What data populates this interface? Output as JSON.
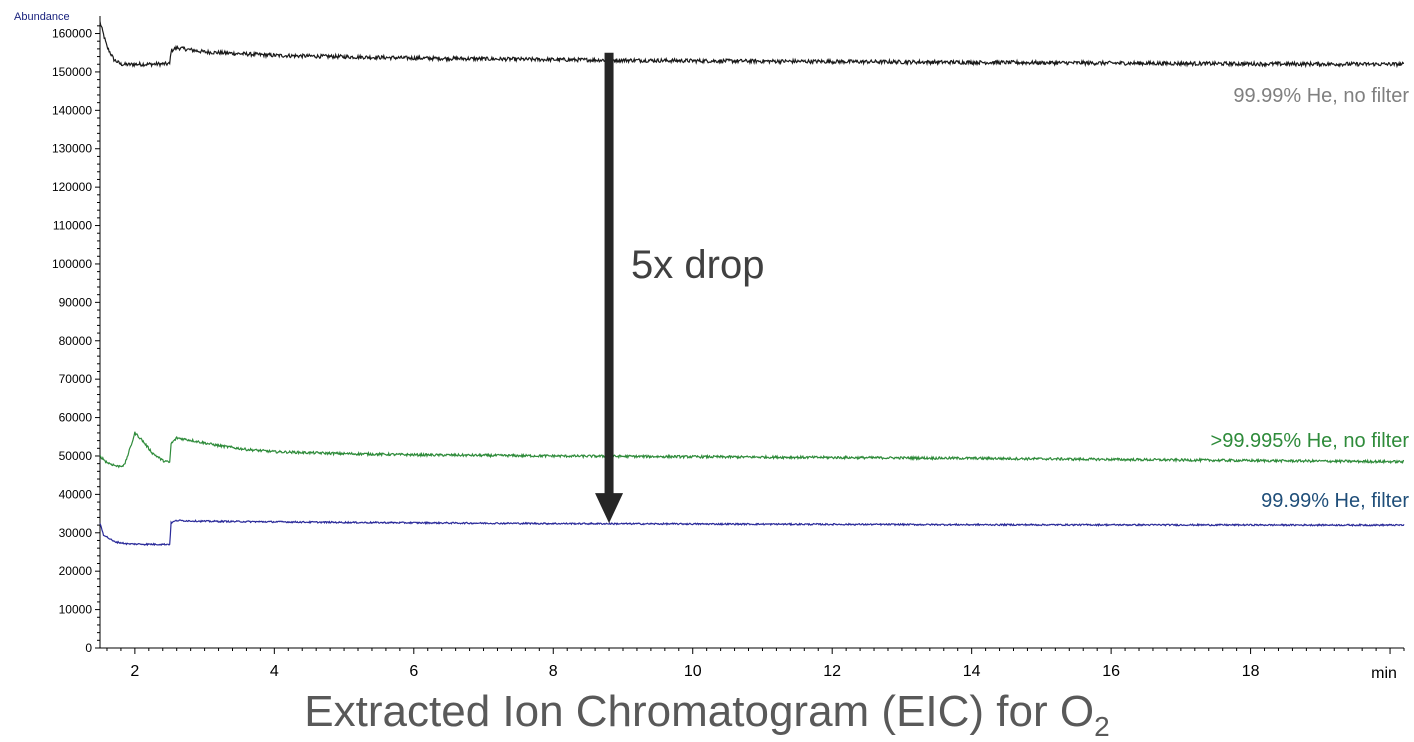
{
  "chart_data": {
    "type": "line",
    "ylabel": "Abundance",
    "xlabel": "min",
    "xlim": [
      1.5,
      20.2
    ],
    "ylim": [
      0,
      163000
    ],
    "x_ticks_major": [
      2,
      4,
      6,
      8,
      10,
      12,
      14,
      16,
      18
    ],
    "y_ticks_major": [
      0,
      10000,
      20000,
      30000,
      40000,
      50000,
      60000,
      70000,
      80000,
      90000,
      100000,
      110000,
      120000,
      130000,
      140000,
      150000,
      160000
    ],
    "grid": false,
    "series": [
      {
        "name": "99.99% He, no filter",
        "color": "#1a1a1a",
        "label_color": "#7f7f7f",
        "noise": 500,
        "points": [
          [
            1.5,
            163000
          ],
          [
            1.6,
            156500
          ],
          [
            1.7,
            153200
          ],
          [
            1.8,
            152000
          ],
          [
            1.9,
            151900
          ],
          [
            2.0,
            152000
          ],
          [
            2.2,
            152000
          ],
          [
            2.5,
            152100
          ],
          [
            2.52,
            155500
          ],
          [
            2.6,
            156300
          ],
          [
            3.0,
            155200
          ],
          [
            4.0,
            154300
          ],
          [
            6.0,
            153600
          ],
          [
            8.0,
            153200
          ],
          [
            10.0,
            152900
          ],
          [
            12.0,
            152700
          ],
          [
            14.0,
            152500
          ],
          [
            16.0,
            152300
          ],
          [
            18.0,
            152100
          ],
          [
            20.2,
            152000
          ]
        ]
      },
      {
        "name": ">99.995%  He, no filter",
        "color": "#2e8b3a",
        "label_color": "#2e8b3a",
        "noise": 320,
        "points": [
          [
            1.5,
            50000
          ],
          [
            1.6,
            48300
          ],
          [
            1.75,
            47300
          ],
          [
            1.85,
            47600
          ],
          [
            1.95,
            53000
          ],
          [
            2.0,
            56000
          ],
          [
            2.1,
            54200
          ],
          [
            2.25,
            50800
          ],
          [
            2.4,
            48800
          ],
          [
            2.5,
            48300
          ],
          [
            2.52,
            53200
          ],
          [
            2.6,
            54700
          ],
          [
            2.8,
            54100
          ],
          [
            3.2,
            52700
          ],
          [
            3.6,
            51700
          ],
          [
            4.0,
            51100
          ],
          [
            5.0,
            50600
          ],
          [
            6.0,
            50300
          ],
          [
            8.0,
            50000
          ],
          [
            10.0,
            49800
          ],
          [
            12.0,
            49600
          ],
          [
            14.0,
            49400
          ],
          [
            16.0,
            49100
          ],
          [
            18.0,
            48800
          ],
          [
            20.2,
            48500
          ]
        ]
      },
      {
        "name": "99.99% He, filter",
        "color": "#2b2b9a",
        "label_color": "#1f4e79",
        "noise": 200,
        "points": [
          [
            1.5,
            32500
          ],
          [
            1.55,
            29500
          ],
          [
            1.7,
            27700
          ],
          [
            1.9,
            27100
          ],
          [
            2.2,
            27000
          ],
          [
            2.5,
            27000
          ],
          [
            2.52,
            32600
          ],
          [
            2.6,
            33200
          ],
          [
            3.0,
            33000
          ],
          [
            5.0,
            32700
          ],
          [
            8.0,
            32400
          ],
          [
            10.0,
            32300
          ],
          [
            14.0,
            32100
          ],
          [
            20.2,
            32000
          ]
        ]
      }
    ],
    "annotation": {
      "text": "5x drop",
      "x": 8.8,
      "y_from": 155000,
      "y_to": 32500
    }
  },
  "caption": {
    "main": "Extracted Ion Chromatogram (EIC) for O",
    "subscript": "2"
  }
}
